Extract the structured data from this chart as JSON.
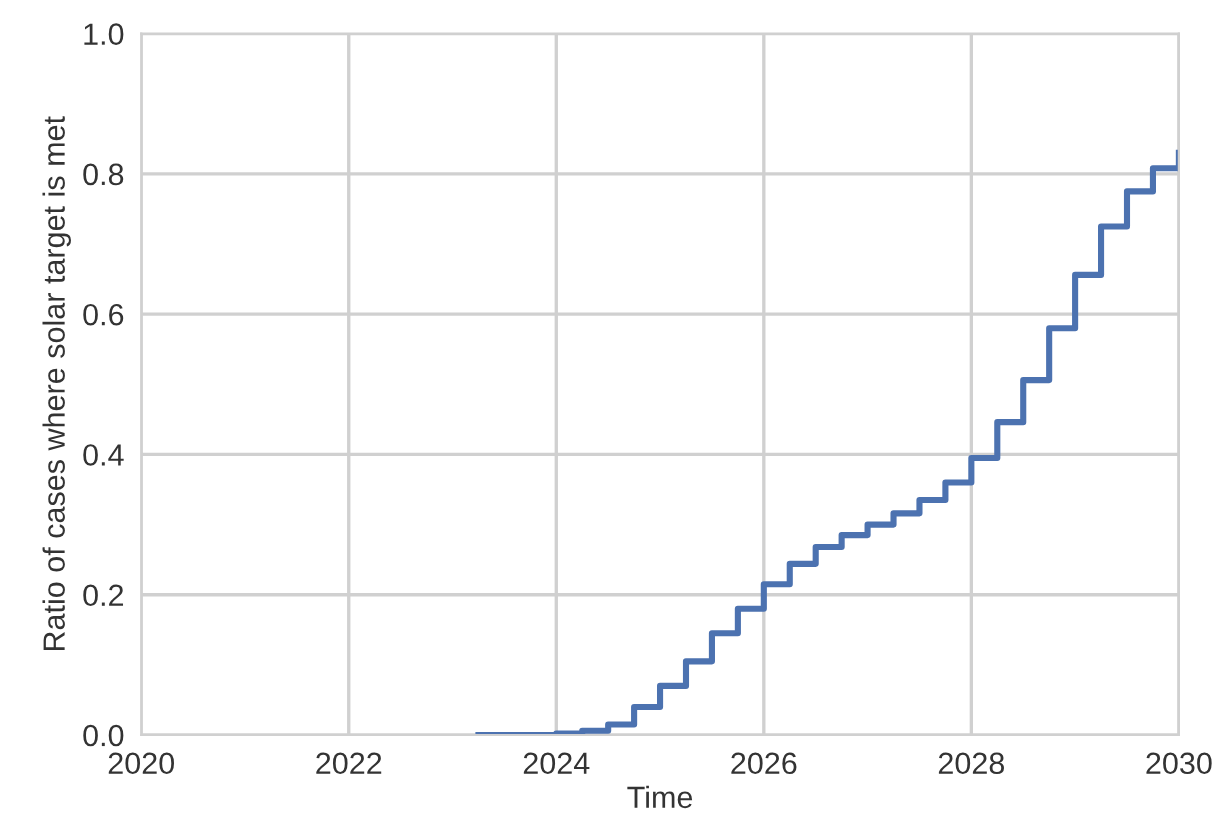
{
  "chart_data": {
    "type": "step",
    "xlabel": "Time",
    "ylabel": "Ratio of cases where solar target is met",
    "xlim": [
      2020,
      2030
    ],
    "xticks": [
      2020,
      2022,
      2024,
      2026,
      2028,
      2030
    ],
    "ylim": [
      0,
      1
    ],
    "yticks": [
      {
        "value": 0,
        "label": "0.0"
      },
      {
        "value": 0.2,
        "label": "0.2"
      },
      {
        "value": 0.4,
        "label": "0.4"
      },
      {
        "value": 0.6,
        "label": "0.6"
      },
      {
        "value": 0.8,
        "label": "0.8"
      },
      {
        "value": 1,
        "label": "1.0"
      }
    ],
    "grid": true,
    "line_style": "solid",
    "series": [
      {
        "color": "#4c72b0",
        "x": [
          2023.25,
          2024.0,
          2024.25,
          2024.5,
          2024.75,
          2025.0,
          2025.25,
          2025.5,
          2025.75,
          2026.0,
          2026.25,
          2026.5,
          2026.75,
          2027.0,
          2027.25,
          2027.5,
          2027.75,
          2028.0,
          2028.25,
          2028.5,
          2028.75,
          2029.0,
          2029.25,
          2029.5,
          2029.75,
          2030.0
        ],
        "values": [
          0.0,
          0.002,
          0.006,
          0.015,
          0.04,
          0.07,
          0.105,
          0.145,
          0.18,
          0.215,
          0.244,
          0.268,
          0.285,
          0.3,
          0.316,
          0.335,
          0.36,
          0.395,
          0.446,
          0.506,
          0.58,
          0.656,
          0.725,
          0.775,
          0.808,
          0.83
        ]
      }
    ]
  }
}
